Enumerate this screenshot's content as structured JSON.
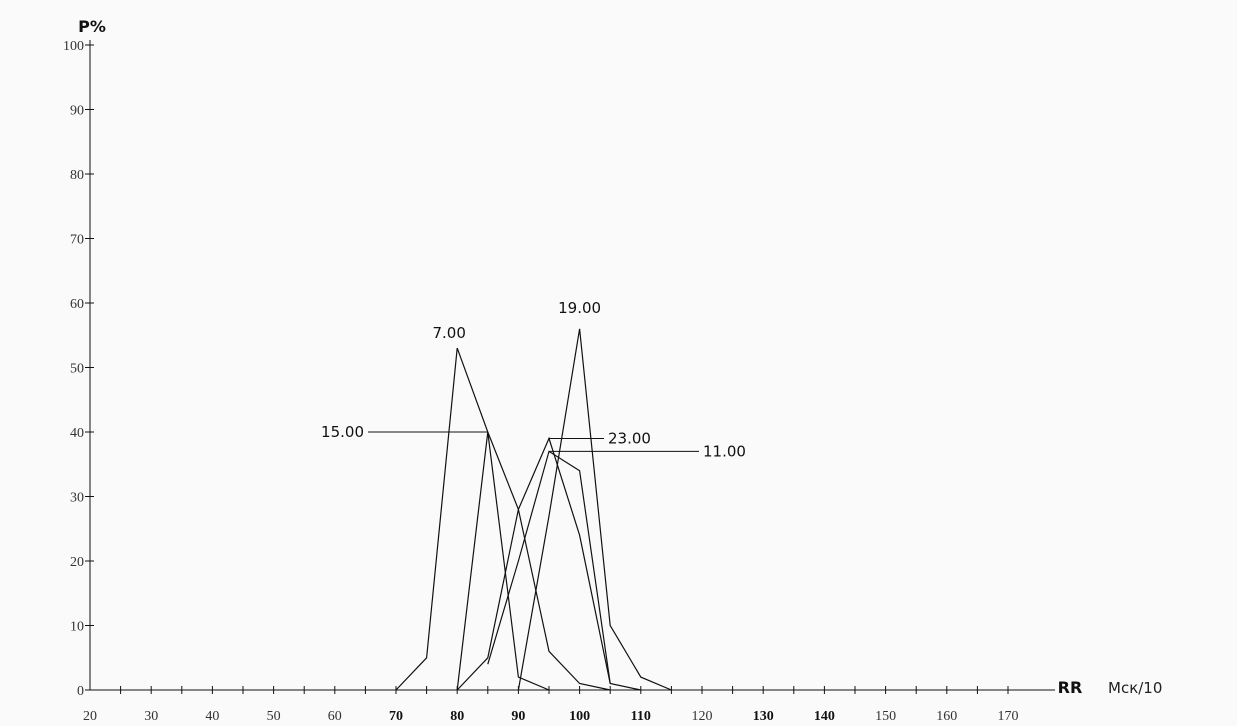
{
  "chart_data": {
    "type": "line",
    "title": "",
    "ylabel": "P%",
    "xlabel": "RR",
    "x_unit": "Мск/10",
    "xlim": [
      20,
      175
    ],
    "ylim": [
      0,
      100
    ],
    "x_ticks": [
      20,
      30,
      40,
      50,
      60,
      70,
      80,
      90,
      100,
      110,
      120,
      130,
      140,
      150,
      160,
      170
    ],
    "x_ticks_bold": [
      70,
      80,
      90,
      100,
      110,
      130,
      140
    ],
    "y_ticks": [
      0,
      10,
      20,
      30,
      40,
      50,
      60,
      70,
      80,
      90,
      100
    ],
    "grid": false,
    "series": [
      {
        "name": "7.00",
        "x": [
          70,
          75,
          80,
          85,
          90,
          95
        ],
        "y": [
          0,
          5,
          53,
          40,
          2,
          0
        ]
      },
      {
        "name": "15.00",
        "x": [
          80,
          85,
          90,
          95,
          100,
          105
        ],
        "y": [
          0,
          40,
          28,
          6,
          1,
          0
        ]
      },
      {
        "name": "19.00",
        "x": [
          90,
          95,
          100,
          105,
          110,
          115
        ],
        "y": [
          0,
          27,
          56,
          10,
          2,
          0
        ]
      },
      {
        "name": "23.00",
        "x": [
          80,
          85,
          90,
          95,
          100,
          105
        ],
        "y": [
          0,
          5,
          28,
          39,
          24,
          1
        ]
      },
      {
        "name": "11.00",
        "x": [
          85,
          90,
          95,
          100,
          105,
          110
        ],
        "y": [
          4,
          20,
          37,
          34,
          1,
          0
        ]
      }
    ],
    "annotations": [
      {
        "text": "7.00",
        "series": "7.00"
      },
      {
        "text": "15.00",
        "series": "15.00"
      },
      {
        "text": "19.00",
        "series": "19.00"
      },
      {
        "text": "23.00",
        "series": "23.00"
      },
      {
        "text": "11.00",
        "series": "11.00"
      }
    ]
  }
}
